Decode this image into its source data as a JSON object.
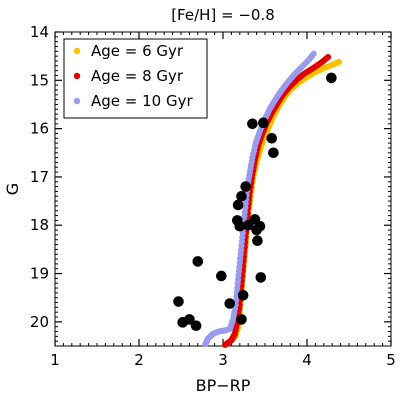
{
  "chart_data": {
    "type": "scatter",
    "title": "[Fe/H] = −0.8",
    "xlabel": "BP−RP",
    "ylabel": "G",
    "xlim": [
      1,
      5
    ],
    "ylim": [
      20.5,
      14
    ],
    "y_inverted": true,
    "x_ticks": [
      "1",
      "2",
      "3",
      "4",
      "5"
    ],
    "y_ticks": [
      "14",
      "15",
      "16",
      "17",
      "18",
      "19",
      "20"
    ],
    "legend_position": "top-left",
    "series": [
      {
        "name": "Age = 6 Gyr",
        "color": "#FFC000",
        "x": [
          3.0,
          3.05,
          3.1,
          3.15,
          3.18,
          3.2,
          3.22,
          3.24,
          3.26,
          3.28,
          3.3,
          3.33,
          3.36,
          3.4,
          3.45,
          3.5,
          3.55,
          3.6,
          3.66,
          3.72,
          3.8,
          3.9,
          4.0,
          4.1,
          4.2,
          4.3,
          4.38
        ],
        "y": [
          20.5,
          20.45,
          20.38,
          20.3,
          20.1,
          19.8,
          19.4,
          19.0,
          18.6,
          18.2,
          17.8,
          17.4,
          17.0,
          16.7,
          16.4,
          16.15,
          15.95,
          15.75,
          15.55,
          15.38,
          15.2,
          15.05,
          14.93,
          14.83,
          14.75,
          14.68,
          14.62
        ]
      },
      {
        "name": "Age = 8 Gyr",
        "color": "#E00000",
        "x": [
          3.0,
          3.05,
          3.1,
          3.14,
          3.17,
          3.2,
          3.22,
          3.24,
          3.26,
          3.28,
          3.3,
          3.32,
          3.35,
          3.38,
          3.42,
          3.47,
          3.52,
          3.58,
          3.64,
          3.7,
          3.78,
          3.87,
          3.97,
          4.08,
          4.18,
          4.25
        ],
        "y": [
          20.5,
          20.45,
          20.38,
          20.25,
          20.0,
          19.65,
          19.25,
          18.85,
          18.45,
          18.05,
          17.65,
          17.3,
          16.95,
          16.65,
          16.35,
          16.1,
          15.88,
          15.68,
          15.5,
          15.33,
          15.16,
          15.0,
          14.86,
          14.74,
          14.62,
          14.52
        ]
      },
      {
        "name": "Age = 10 Gyr",
        "color": "#9B9BEE",
        "x": [
          2.78,
          2.82,
          2.88,
          2.95,
          3.02,
          3.08,
          3.12,
          3.15,
          3.17,
          3.19,
          3.21,
          3.23,
          3.25,
          3.27,
          3.29,
          3.32,
          3.35,
          3.39,
          3.44,
          3.5,
          3.56,
          3.63,
          3.7,
          3.78,
          3.86,
          3.94,
          4.02,
          4.08
        ],
        "y": [
          20.5,
          20.35,
          20.25,
          20.2,
          20.18,
          20.15,
          19.95,
          19.65,
          19.3,
          18.95,
          18.6,
          18.25,
          17.9,
          17.55,
          17.2,
          16.9,
          16.6,
          16.3,
          16.05,
          15.8,
          15.58,
          15.38,
          15.2,
          15.02,
          14.86,
          14.72,
          14.58,
          14.45
        ]
      }
    ],
    "observed_stars": {
      "color": "#000000",
      "x": [
        2.47,
        2.52,
        2.6,
        2.68,
        2.7,
        2.98,
        3.08,
        3.17,
        3.18,
        3.2,
        3.22,
        3.22,
        3.24,
        3.27,
        3.3,
        3.35,
        3.38,
        3.4,
        3.41,
        3.44,
        3.45,
        3.48,
        3.58,
        3.6,
        4.29
      ],
      "y": [
        19.58,
        20.01,
        19.95,
        20.08,
        18.75,
        19.05,
        19.62,
        17.9,
        17.58,
        18.02,
        17.4,
        19.95,
        19.45,
        17.2,
        18.0,
        15.9,
        17.88,
        18.1,
        18.32,
        18.02,
        19.08,
        15.88,
        16.2,
        16.5,
        14.95
      ]
    }
  }
}
